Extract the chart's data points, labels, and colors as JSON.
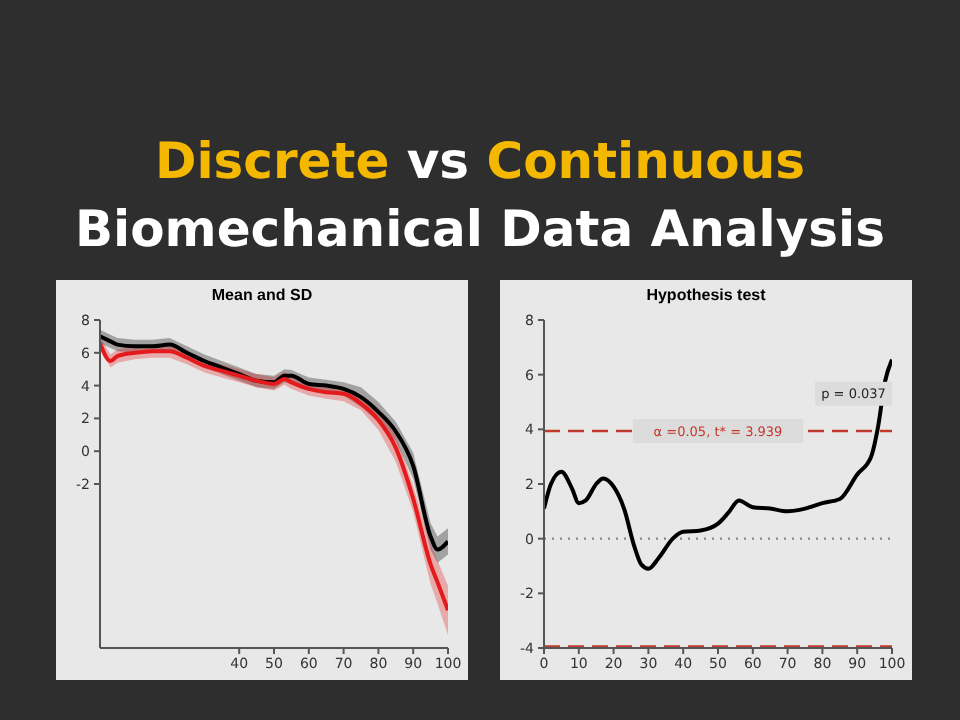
{
  "chart_data": [
    {
      "type": "line",
      "title": "Mean and SD",
      "annotations": [
        "Discrete",
        "vs",
        "Continuous",
        "Biomechanical Data Analysis"
      ],
      "x": [
        0,
        3,
        5,
        10,
        15,
        20,
        25,
        30,
        35,
        40,
        45,
        50,
        53,
        55,
        60,
        65,
        70,
        75,
        80,
        85,
        90,
        95,
        97,
        100
      ],
      "series": [
        {
          "color": "#000000",
          "values": [
            7.0,
            6.7,
            6.5,
            6.4,
            6.4,
            6.5,
            6.0,
            5.5,
            5.1,
            4.7,
            4.3,
            4.2,
            4.6,
            4.6,
            4.1,
            4.0,
            3.8,
            3.3,
            2.4,
            1.2,
            -0.9,
            -5.2,
            -6.0,
            -5.5
          ],
          "lower": [
            6.6,
            6.3,
            6.1,
            6.0,
            6.0,
            6.1,
            5.6,
            5.1,
            4.7,
            4.3,
            3.9,
            3.8,
            4.2,
            4.15,
            3.7,
            3.55,
            3.4,
            2.7,
            1.8,
            0.6,
            -1.7,
            -6.0,
            -6.8,
            -6.3
          ],
          "upper": [
            7.4,
            7.1,
            6.9,
            6.8,
            6.8,
            6.9,
            6.4,
            5.9,
            5.5,
            5.1,
            4.7,
            4.6,
            5.0,
            4.95,
            4.5,
            4.35,
            4.2,
            3.9,
            3.0,
            1.8,
            -0.1,
            -4.4,
            -5.2,
            -4.7
          ]
        },
        {
          "color": "#e41a1c",
          "values": [
            6.6,
            5.5,
            5.8,
            6.0,
            6.1,
            6.1,
            5.7,
            5.2,
            4.9,
            4.6,
            4.3,
            4.1,
            4.4,
            4.2,
            3.8,
            3.6,
            3.5,
            2.9,
            1.9,
            0.2,
            -2.9,
            -6.9,
            -8.0,
            -9.7
          ],
          "lower": [
            6.2,
            5.1,
            5.4,
            5.6,
            5.7,
            5.7,
            5.3,
            4.8,
            4.5,
            4.2,
            3.9,
            3.7,
            4.05,
            3.8,
            3.4,
            3.2,
            3.05,
            2.5,
            1.3,
            -0.65,
            -3.7,
            -8.1,
            -9.3,
            -11.2
          ],
          "upper": [
            7.0,
            5.9,
            6.2,
            6.4,
            6.5,
            6.5,
            6.1,
            5.6,
            5.3,
            5.0,
            4.7,
            4.5,
            4.85,
            4.6,
            4.2,
            4.0,
            3.85,
            3.3,
            2.5,
            0.95,
            -2.1,
            -5.7,
            -6.7,
            -8.2
          ]
        }
      ],
      "xlim": [
        0,
        100
      ],
      "xticks": [
        40,
        50,
        60,
        70,
        80,
        90,
        100
      ],
      "ylim": [
        -12,
        8
      ],
      "yticks": [
        -2,
        0,
        2,
        4,
        6,
        8
      ],
      "grid": false,
      "legend": false
    },
    {
      "type": "line",
      "title": "Hypothesis test",
      "annotations": [
        {
          "text": "p = 0.037",
          "x": 97,
          "y": 5.3
        }
      ],
      "x": [
        0,
        2,
        5,
        8,
        10,
        12,
        15,
        17,
        20,
        23,
        26,
        28,
        30,
        33,
        37,
        40,
        45,
        50,
        53,
        56,
        60,
        65,
        70,
        75,
        80,
        85,
        90,
        94,
        96,
        98,
        100
      ],
      "series": [
        {
          "color": "#000000",
          "values": [
            1.1,
            2.0,
            2.45,
            1.85,
            1.3,
            1.4,
            2.0,
            2.2,
            1.9,
            1.1,
            -0.3,
            -0.95,
            -1.1,
            -0.7,
            0.0,
            0.25,
            0.3,
            0.55,
            0.95,
            1.4,
            1.15,
            1.1,
            1.0,
            1.1,
            1.3,
            1.45,
            2.35,
            3.0,
            4.1,
            5.75,
            6.55
          ]
        }
      ],
      "ref_lines": [
        {
          "axis": "y",
          "value": 3.939,
          "label": "α =0.05,    t* = 3.939",
          "color": "#c0392b",
          "line_style": "dashed"
        },
        {
          "axis": "y",
          "value": -3.939,
          "color": "#c0392b",
          "line_style": "dashed"
        },
        {
          "axis": "y",
          "value": 0,
          "color": "#888888",
          "line_style": "dotted"
        }
      ],
      "xlim": [
        0,
        100
      ],
      "xticks": [
        0,
        10,
        20,
        30,
        40,
        50,
        60,
        70,
        80,
        90,
        100
      ],
      "ylim": [
        -4,
        8
      ],
      "yticks": [
        -4,
        -2,
        0,
        2,
        4,
        6,
        8
      ],
      "grid": false,
      "legend": false
    }
  ]
}
